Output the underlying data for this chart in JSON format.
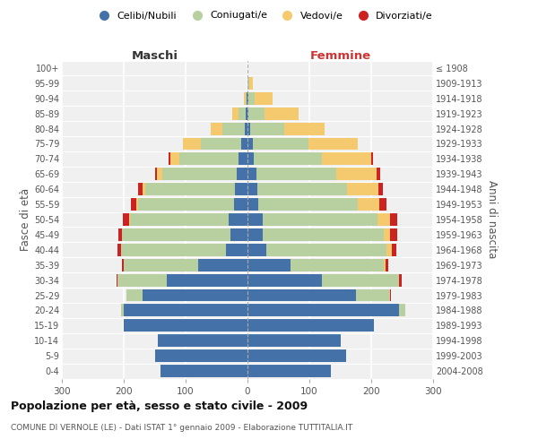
{
  "age_groups": [
    "0-4",
    "5-9",
    "10-14",
    "15-19",
    "20-24",
    "25-29",
    "30-34",
    "35-39",
    "40-44",
    "45-49",
    "50-54",
    "55-59",
    "60-64",
    "65-69",
    "70-74",
    "75-79",
    "80-84",
    "85-89",
    "90-94",
    "95-99",
    "100+"
  ],
  "birth_years": [
    "2004-2008",
    "1999-2003",
    "1994-1998",
    "1989-1993",
    "1984-1988",
    "1979-1983",
    "1974-1978",
    "1969-1973",
    "1964-1968",
    "1959-1963",
    "1954-1958",
    "1949-1953",
    "1944-1948",
    "1939-1943",
    "1934-1938",
    "1929-1933",
    "1924-1928",
    "1919-1923",
    "1914-1918",
    "1909-1913",
    "≤ 1908"
  ],
  "colors": {
    "celibe": "#4472a8",
    "coniugato": "#b8cfa0",
    "vedovo": "#f5c96e",
    "divorziato": "#cc2222"
  },
  "maschi": {
    "celibe": [
      140,
      150,
      145,
      200,
      200,
      170,
      130,
      80,
      35,
      28,
      30,
      22,
      20,
      18,
      15,
      10,
      5,
      3,
      1,
      0,
      0
    ],
    "coniugato": [
      0,
      0,
      0,
      0,
      5,
      25,
      80,
      120,
      170,
      175,
      160,
      155,
      145,
      120,
      95,
      65,
      35,
      12,
      2,
      0,
      0
    ],
    "vedovo": [
      0,
      0,
      0,
      0,
      0,
      0,
      0,
      0,
      0,
      0,
      2,
      3,
      5,
      8,
      15,
      30,
      20,
      10,
      3,
      0,
      0
    ],
    "divorziato": [
      0,
      0,
      0,
      0,
      0,
      0,
      2,
      3,
      5,
      5,
      10,
      8,
      7,
      3,
      2,
      0,
      0,
      0,
      0,
      0,
      0
    ]
  },
  "femmine": {
    "nubile": [
      135,
      160,
      150,
      205,
      245,
      175,
      120,
      70,
      30,
      25,
      25,
      18,
      16,
      14,
      10,
      8,
      4,
      2,
      1,
      0,
      0
    ],
    "coniugata": [
      0,
      0,
      0,
      0,
      10,
      55,
      125,
      150,
      195,
      195,
      185,
      160,
      145,
      130,
      110,
      90,
      55,
      25,
      10,
      3,
      0
    ],
    "vedova": [
      0,
      0,
      0,
      0,
      0,
      0,
      0,
      3,
      8,
      10,
      20,
      35,
      50,
      65,
      80,
      80,
      65,
      55,
      30,
      5,
      0
    ],
    "divorziata": [
      0,
      0,
      0,
      0,
      0,
      2,
      5,
      5,
      8,
      12,
      12,
      12,
      8,
      5,
      3,
      0,
      0,
      0,
      0,
      0,
      0
    ]
  },
  "title": "Popolazione per età, sesso e stato civile - 2009",
  "subtitle": "COMUNE DI VERNOLE (LE) - Dati ISTAT 1° gennaio 2009 - Elaborazione TUTTITALIA.IT",
  "xlabel_left": "Maschi",
  "xlabel_right": "Femmine",
  "ylabel_left": "Fasce di età",
  "ylabel_right": "Anni di nascita",
  "xlim": 300,
  "bg_color": "#f0f0f0",
  "legend_labels": [
    "Celibi/Nubili",
    "Coniugati/e",
    "Vedovi/e",
    "Divorziati/e"
  ]
}
